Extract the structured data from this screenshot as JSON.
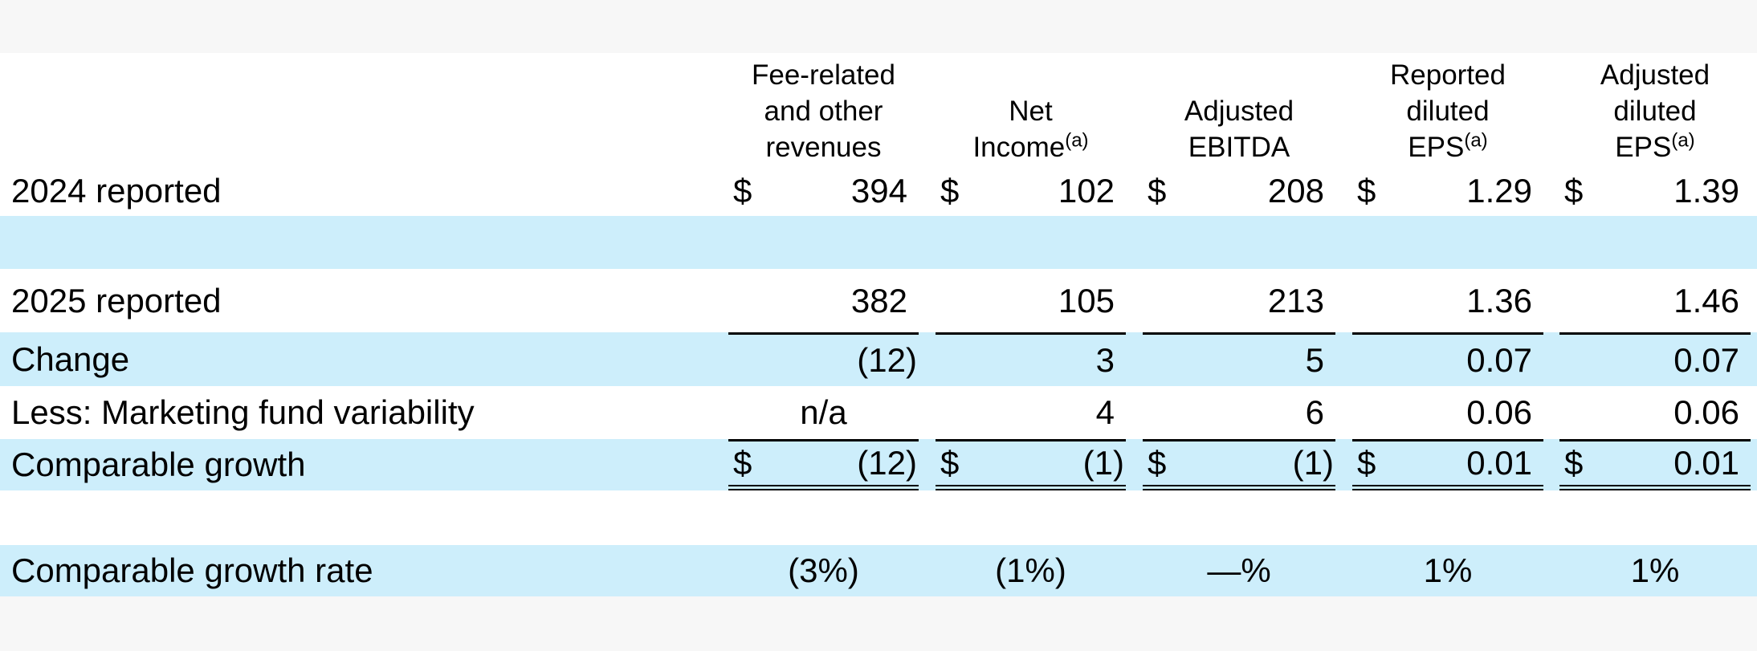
{
  "header": {
    "columns": [
      {
        "lines": [
          "Fee-related",
          "and other",
          "revenues"
        ]
      },
      {
        "lines": [
          "Net",
          "Income"
        ],
        "superscript": "(a)"
      },
      {
        "lines": [
          "Adjusted",
          "EBITDA"
        ]
      },
      {
        "lines": [
          "Reported",
          "diluted",
          "EPS"
        ],
        "superscript": "(a)"
      },
      {
        "lines": [
          "Adjusted",
          "diluted",
          "EPS"
        ],
        "superscript": "(a)"
      }
    ]
  },
  "rows": [
    {
      "label": "2024 reported",
      "cells": [
        {
          "currency": "$",
          "value": "394"
        },
        {
          "currency": "$",
          "value": "102"
        },
        {
          "currency": "$",
          "value": "208"
        },
        {
          "currency": "$",
          "value": "1.29"
        },
        {
          "currency": "$",
          "value": "1.39"
        }
      ]
    },
    {
      "label": "2025 reported",
      "cells": [
        {
          "value": "382"
        },
        {
          "value": "105"
        },
        {
          "value": "213"
        },
        {
          "value": "1.36"
        },
        {
          "value": "1.46"
        }
      ]
    },
    {
      "label": "Change",
      "cells": [
        {
          "value": "(12)"
        },
        {
          "value": "3"
        },
        {
          "value": "5"
        },
        {
          "value": "0.07"
        },
        {
          "value": "0.07"
        }
      ]
    },
    {
      "label": "Less: Marketing fund variability",
      "cells": [
        {
          "value": "n/a"
        },
        {
          "value": "4"
        },
        {
          "value": "6"
        },
        {
          "value": "0.06"
        },
        {
          "value": "0.06"
        }
      ]
    },
    {
      "label": "Comparable growth",
      "cells": [
        {
          "currency": "$",
          "value": "(12)"
        },
        {
          "currency": "$",
          "value": "(1)"
        },
        {
          "currency": "$",
          "value": "(1)"
        },
        {
          "currency": "$",
          "value": "0.01"
        },
        {
          "currency": "$",
          "value": "0.01"
        }
      ]
    },
    {
      "label": "Comparable growth rate",
      "cells": [
        {
          "value": "(3%)"
        },
        {
          "value": "(1%)"
        },
        {
          "value": "—%"
        },
        {
          "value": "1%"
        },
        {
          "value": "1%"
        }
      ]
    }
  ]
}
